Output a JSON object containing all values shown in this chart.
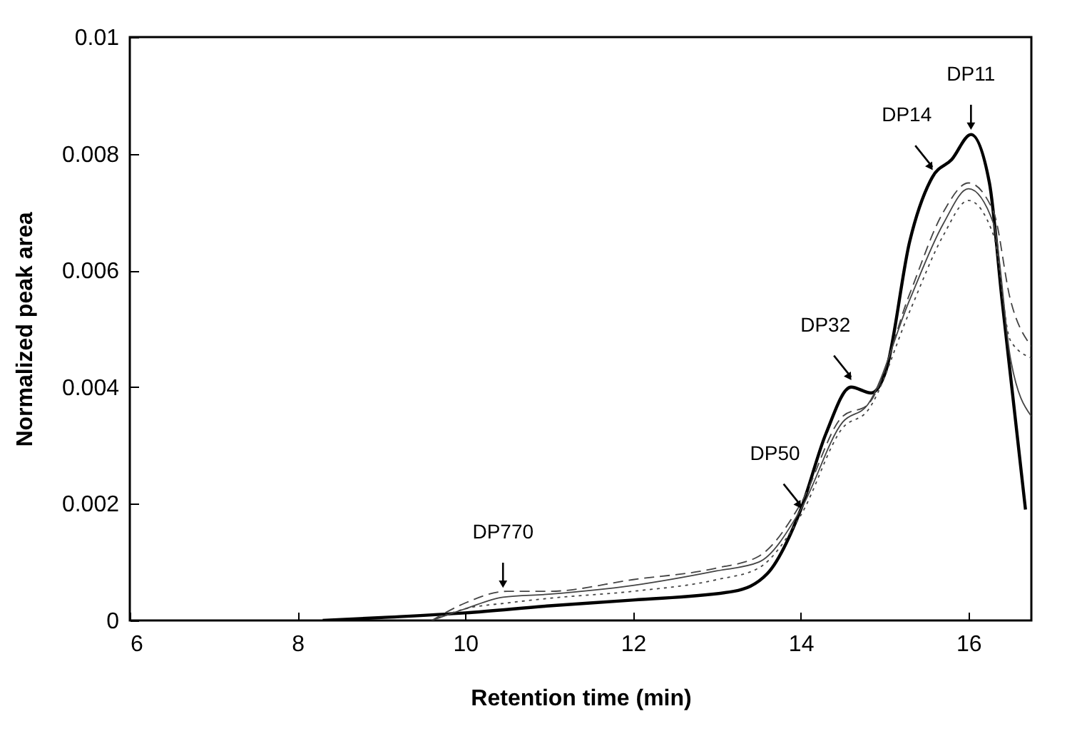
{
  "chart_data": {
    "type": "line",
    "xlabel": "Retention time (min)",
    "ylabel": "Normalized peak area",
    "xlim": [
      6,
      16.75
    ],
    "xticks": [
      6,
      8,
      10,
      12,
      14,
      16
    ],
    "ylim": [
      0,
      0.01
    ],
    "yticks": [
      0,
      0.002,
      0.004,
      0.006,
      0.008,
      0.01
    ],
    "grid": false,
    "marker": "none",
    "series": [
      {
        "color": "#000000",
        "line_style": "solid",
        "x": [
          8.3,
          9,
          10,
          11,
          12,
          13.2,
          13.6,
          14,
          14.3,
          14.6,
          14.84,
          15.02,
          15.3,
          15.57,
          15.8,
          16.03,
          16.25,
          16.4,
          16.68
        ],
        "values": [
          0,
          5e-05,
          0.00013,
          0.00025,
          0.00035,
          0.0005,
          0.0008,
          0.0019,
          0.0032,
          0.004,
          0.0039,
          0.0043,
          0.0065,
          0.0076,
          0.0079,
          0.00833,
          0.0075,
          0.0055,
          0.0019
        ]
      },
      {
        "color": "#444444",
        "line_style": "solid",
        "x": [
          9.6,
          10,
          10.45,
          11,
          12,
          13,
          13.5,
          14,
          14.5,
          14.8,
          15.3,
          15.7,
          16,
          16.3,
          16.5,
          16.75
        ],
        "values": [
          0,
          0.0002,
          0.0004,
          0.00045,
          0.0006,
          0.00085,
          0.001,
          0.0019,
          0.0034,
          0.0037,
          0.0055,
          0.0068,
          0.0074,
          0.0068,
          0.0045,
          0.0035
        ]
      },
      {
        "color": "#444444",
        "line_style": "dashed",
        "x": [
          9.6,
          10,
          10.5,
          11,
          12,
          13,
          13.5,
          14,
          14.5,
          14.8,
          15.3,
          15.7,
          16,
          16.3,
          16.5,
          16.75
        ],
        "values": [
          0,
          0.0003,
          0.0005,
          0.0005,
          0.0007,
          0.0009,
          0.0011,
          0.002,
          0.0035,
          0.0037,
          0.0056,
          0.007,
          0.0075,
          0.007,
          0.0055,
          0.0047
        ]
      },
      {
        "color": "#444444",
        "line_style": "dotted",
        "x": [
          9.6,
          10,
          10.5,
          11,
          12,
          13,
          13.5,
          14,
          14.5,
          14.8,
          15.3,
          15.7,
          16,
          16.3,
          16.5,
          16.75
        ],
        "values": [
          0,
          0.0002,
          0.0003,
          0.00038,
          0.0005,
          0.0007,
          0.0009,
          0.0018,
          0.0033,
          0.0036,
          0.0053,
          0.0066,
          0.0072,
          0.0066,
          0.0048,
          0.0045
        ]
      }
    ],
    "annotations": [
      {
        "text": "DP770",
        "x": 10.45,
        "y": 0.00055
      },
      {
        "text": "DP50",
        "x": 14,
        "y": 0.0019
      },
      {
        "text": "DP32",
        "x": 14.6,
        "y": 0.0041
      },
      {
        "text": "DP14",
        "x": 15.57,
        "y": 0.0077
      },
      {
        "text": "DP11",
        "x": 16.03,
        "y": 0.0084
      }
    ]
  }
}
